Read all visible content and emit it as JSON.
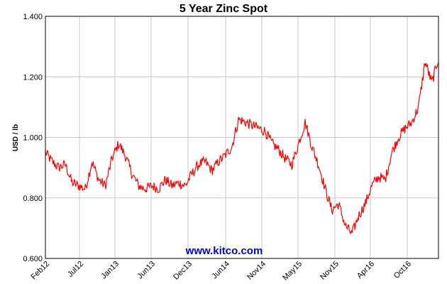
{
  "chart_data": {
    "type": "line",
    "title": "5 Year Zinc Spot",
    "xlabel": "",
    "ylabel": "USD / lb",
    "ylim": [
      0.6,
      1.4
    ],
    "y_ticks": [
      "0.600",
      "0.800",
      "1.000",
      "1.200",
      "1.400"
    ],
    "x_ticks": [
      "Feb12",
      "Jul12",
      "Jan13",
      "Jun13",
      "Dec13",
      "Jun14",
      "Nov14",
      "May15",
      "Nov15",
      "Apr16",
      "Oct16"
    ],
    "grid": true,
    "watermark": "www.kitco.com",
    "colors": {
      "line": "#ff0000",
      "watermark": "#0000cc",
      "grid": "#c8c8c8",
      "frame": "#000000"
    },
    "series": [
      {
        "x": [
          "Feb12",
          "Mar12",
          "Apr12",
          "May12",
          "Jun12",
          "Jul12",
          "Aug12",
          "Sep12",
          "Oct12",
          "Nov12",
          "Dec12",
          "Jan13",
          "Feb13",
          "Mar13",
          "Apr13",
          "May13",
          "Jun13",
          "Jul13",
          "Aug13",
          "Sep13",
          "Oct13",
          "Nov13",
          "Dec13",
          "Jan14",
          "Feb14",
          "Mar14",
          "Apr14",
          "May14",
          "Jun14",
          "Jul14",
          "Aug14",
          "Sep14",
          "Oct14",
          "Nov14",
          "Dec14",
          "Jan15",
          "Feb15",
          "Mar15",
          "Apr15",
          "May15",
          "Jun15",
          "Jul15",
          "Aug15",
          "Sep15",
          "Oct15",
          "Nov15",
          "Dec15",
          "Jan16",
          "Feb16",
          "Mar16",
          "Apr16",
          "May16",
          "Jun16",
          "Jul16",
          "Aug16",
          "Sep16",
          "Oct16",
          "Nov16",
          "Dec16",
          "Jan17"
        ],
        "values": [
          0.95,
          0.92,
          0.9,
          0.91,
          0.85,
          0.84,
          0.83,
          0.92,
          0.86,
          0.84,
          0.93,
          0.98,
          0.94,
          0.88,
          0.84,
          0.83,
          0.84,
          0.83,
          0.86,
          0.84,
          0.85,
          0.84,
          0.88,
          0.91,
          0.92,
          0.89,
          0.92,
          0.94,
          0.97,
          1.06,
          1.05,
          1.04,
          1.03,
          1.02,
          0.98,
          0.96,
          0.93,
          0.91,
          0.98,
          1.05,
          0.97,
          0.91,
          0.83,
          0.76,
          0.78,
          0.71,
          0.68,
          0.74,
          0.78,
          0.84,
          0.87,
          0.86,
          0.95,
          1.0,
          1.03,
          1.05,
          1.1,
          1.25,
          1.18,
          1.26
        ]
      }
    ]
  }
}
